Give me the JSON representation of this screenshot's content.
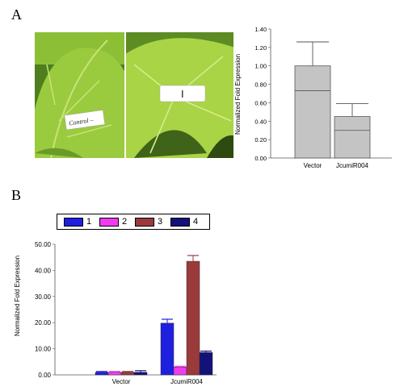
{
  "panel_a": {
    "letter": "A",
    "left_label": "Control –",
    "right_label": "I"
  },
  "panel_b": {
    "letter": "B"
  },
  "chart_data": [
    {
      "type": "bar",
      "categories": [
        "Vector",
        "JcumiR004"
      ],
      "values": [
        1.0,
        0.45
      ],
      "inner_lines": [
        0.73,
        0.3
      ],
      "errors": [
        0.26,
        0.14
      ],
      "ylabel": "Normalized Fold Expression",
      "ylim": [
        0,
        1.4
      ],
      "yticks": [
        "0.00",
        "0.20",
        "0.40",
        "0.60",
        "0.80",
        "1.00",
        "1.20",
        "1.40"
      ],
      "grid": false,
      "bar_color": "#c4c4c4"
    },
    {
      "type": "bar",
      "categories": [
        "Vector",
        "JcumiR004"
      ],
      "series": [
        {
          "name": "1",
          "values": [
            1.0,
            19.8
          ],
          "errors": [
            0.3,
            1.5
          ],
          "color": "#1f1fe0"
        },
        {
          "name": "2",
          "values": [
            1.0,
            3.0
          ],
          "errors": [
            0.3,
            0.3
          ],
          "color": "#f03cf0"
        },
        {
          "name": "3",
          "values": [
            1.0,
            43.5
          ],
          "errors": [
            0.3,
            2.2
          ],
          "color": "#9b3a3a"
        },
        {
          "name": "4",
          "values": [
            1.0,
            8.6
          ],
          "errors": [
            0.6,
            0.5
          ],
          "color": "#12127a"
        }
      ],
      "ylabel": "Normalized Fold Expression",
      "ylim": [
        0,
        50
      ],
      "yticks": [
        "0.00",
        "10.00",
        "20.00",
        "30.00",
        "40.00",
        "50.00"
      ],
      "grid": false,
      "legend": "top"
    }
  ]
}
